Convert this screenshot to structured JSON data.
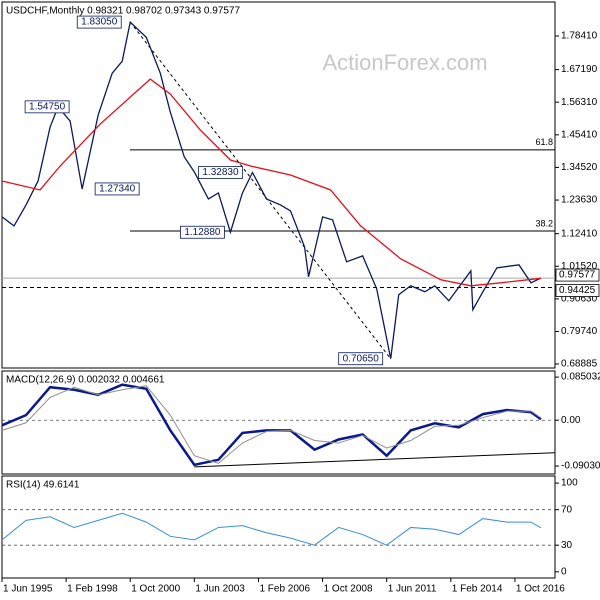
{
  "chart_data": [
    {
      "type": "line",
      "title": "USDCHF,Monthly 0.98321 0.98702 0.97343 0.97577",
      "watermark": "ActionForex.com",
      "xlim": [
        "1995-06",
        "2018-06"
      ],
      "ylim": [
        0.6755,
        1.8976
      ],
      "yticks": [
        {
          "value": 1.7841,
          "label": "1.78410"
        },
        {
          "value": 1.6719,
          "label": "1.67190"
        },
        {
          "value": 1.5631,
          "label": "1.56310"
        },
        {
          "value": 1.4541,
          "label": "1.45410"
        },
        {
          "value": 1.3452,
          "label": "1.34520"
        },
        {
          "value": 1.2363,
          "label": "1.23630"
        },
        {
          "value": 1.1241,
          "label": "1.12410"
        },
        {
          "value": 1.0152,
          "label": "1.01520"
        },
        {
          "value": 0.9063,
          "label": "0.90630"
        },
        {
          "value": 0.7974,
          "label": "0.79740"
        },
        0.68885
      ],
      "series": [
        {
          "color": "#0a1a5c",
          "x": [
            "1995-06",
            "1995-12",
            "1996-06",
            "1996-12",
            "1997-06",
            "1997-10",
            "1998-04",
            "1998-10",
            "1999-06",
            "2000-01",
            "2000-06",
            "2000-10",
            "2001-06",
            "2002-01",
            "2002-06",
            "2003-01",
            "2003-06",
            "2004-01",
            "2004-06",
            "2004-12",
            "2005-06",
            "2005-11",
            "2006-06",
            "2007-01",
            "2007-06",
            "2008-01",
            "2008-03",
            "2008-10",
            "2009-03",
            "2009-10",
            "2010-06",
            "2011-01",
            "2011-08",
            "2011-12",
            "2012-06",
            "2013-01",
            "2013-06",
            "2014-01",
            "2014-12",
            "2015-01",
            "2015-06",
            "2016-01",
            "2016-12",
            "2017-06",
            "2017-11"
          ],
          "values": [
            1.18,
            1.15,
            1.22,
            1.3,
            1.48,
            1.5475,
            1.5,
            1.2734,
            1.52,
            1.66,
            1.7,
            1.8305,
            1.78,
            1.66,
            1.53,
            1.38,
            1.33,
            1.24,
            1.26,
            1.1288,
            1.26,
            1.3283,
            1.24,
            1.22,
            1.2,
            1.08,
            0.98,
            1.18,
            1.17,
            1.03,
            1.05,
            0.94,
            0.7065,
            0.92,
            0.95,
            0.93,
            0.95,
            0.9,
            1.0,
            0.87,
            0.93,
            1.01,
            1.02,
            0.96,
            0.97577
          ]
        },
        {
          "color": "#e0121a",
          "x": [
            "1995-06",
            "1997-01",
            "1997-11",
            "1999-07",
            "2001-08",
            "2002-06",
            "2003-09",
            "2004-12",
            "2005-10",
            "2007-06",
            "2009-02",
            "2010-05",
            "2012-01",
            "2013-09",
            "2014-12",
            "2016-03",
            "2017-11"
          ],
          "values": [
            1.3,
            1.27,
            1.35,
            1.49,
            1.64,
            1.59,
            1.47,
            1.37,
            1.35,
            1.32,
            1.27,
            1.15,
            1.04,
            0.97,
            0.95,
            0.96,
            0.975
          ]
        }
      ],
      "annotations": [
        {
          "value": 1.8305,
          "label": "1.83050",
          "x": "2000-10"
        },
        {
          "value": 1.5475,
          "label": "1.54750",
          "x": "1997-10"
        },
        {
          "value": 1.2734,
          "label": "1.27340",
          "x": "1998-10"
        },
        {
          "value": 1.3283,
          "label": "1.32830",
          "x": "2005-11"
        },
        {
          "value": 1.1288,
          "label": "1.12880",
          "x": "2004-12"
        },
        {
          "value": 0.7065,
          "label": "0.70650",
          "x": "2011-08"
        }
      ],
      "fib_levels": [
        {
          "value": 1.404,
          "label": "61.8"
        },
        {
          "value": 1.133,
          "label": "38.2"
        }
      ],
      "markers": [
        {
          "value": 0.97577,
          "label": "0.97577",
          "style": "solid"
        },
        {
          "value": 0.94425,
          "label": "0.94425",
          "style": "dashed"
        }
      ],
      "trendline": {
        "x": [
          "2000-10",
          "2011-08"
        ],
        "values": [
          1.8305,
          0.7065
        ]
      }
    },
    {
      "type": "line",
      "title": "MACD(12,26,9) 0.002032 0.004661",
      "xlim": [
        "1995-06",
        "2018-06"
      ],
      "ylim": [
        -0.106,
        0.097
      ],
      "yticks": [
        0.085032,
        {
          "value": 0,
          "label": "0.00"
        },
        -0.090302
      ],
      "levels": [
        0
      ],
      "series": [
        {
          "color": "#0a1a8c",
          "width": 2.5,
          "x": [
            "1995-06",
            "1996-06",
            "1997-06",
            "1998-06",
            "1999-06",
            "2000-06",
            "2001-06",
            "2002-06",
            "2003-06",
            "2004-06",
            "2005-06",
            "2006-06",
            "2007-06",
            "2008-06",
            "2009-06",
            "2010-06",
            "2011-06",
            "2012-06",
            "2013-06",
            "2014-06",
            "2015-06",
            "2016-06",
            "2017-06",
            "2017-11"
          ],
          "values": [
            -0.01,
            0.01,
            0.065,
            0.06,
            0.05,
            0.07,
            0.062,
            -0.02,
            -0.088,
            -0.078,
            -0.025,
            -0.02,
            -0.02,
            -0.058,
            -0.038,
            -0.028,
            -0.07,
            -0.02,
            -0.006,
            -0.014,
            0.012,
            0.02,
            0.016,
            0.002032
          ]
        },
        {
          "color": "#909090",
          "width": 1,
          "x": [
            "1995-06",
            "1996-06",
            "1997-06",
            "1998-06",
            "1999-06",
            "2000-06",
            "2001-06",
            "2002-06",
            "2003-06",
            "2004-06",
            "2005-06",
            "2006-06",
            "2007-06",
            "2008-06",
            "2009-06",
            "2010-06",
            "2011-06",
            "2012-06",
            "2013-06",
            "2014-06",
            "2015-06",
            "2016-06",
            "2017-06",
            "2017-11"
          ],
          "values": [
            -0.02,
            -0.005,
            0.045,
            0.065,
            0.05,
            0.06,
            0.068,
            0.01,
            -0.07,
            -0.085,
            -0.045,
            -0.022,
            -0.02,
            -0.04,
            -0.045,
            -0.03,
            -0.055,
            -0.04,
            -0.012,
            -0.01,
            0.005,
            0.018,
            0.018,
            0.004661
          ]
        }
      ],
      "trendline": {
        "x": [
          "2003-06",
          "2018-06"
        ],
        "values": [
          -0.092,
          -0.064
        ]
      }
    },
    {
      "type": "line",
      "title": "RSI(14) 49.6141",
      "xlim": [
        "1995-06",
        "2018-06"
      ],
      "ylim": [
        -7,
        108
      ],
      "yticks": [
        100,
        70,
        30,
        0
      ],
      "levels": [
        70,
        30
      ],
      "xticks": [
        {
          "value": "1995-06",
          "label": "1 Jun 1995"
        },
        {
          "value": "1998-02",
          "label": "1 Feb 1998"
        },
        {
          "value": "2000-10",
          "label": "1 Oct 2000"
        },
        {
          "value": "2003-06",
          "label": "1 Jun 2003"
        },
        {
          "value": "2006-02",
          "label": "1 Feb 2006"
        },
        {
          "value": "2008-10",
          "label": "1 Oct 2008"
        },
        {
          "value": "2011-06",
          "label": "1 Jun 2011"
        },
        {
          "value": "2014-02",
          "label": "1 Feb 2014"
        },
        {
          "value": "2016-10",
          "label": "1 Oct 2016"
        }
      ],
      "series": [
        {
          "color": "#3a8fd8",
          "width": 1,
          "x": [
            "1995-06",
            "1996-06",
            "1997-06",
            "1998-06",
            "1999-06",
            "2000-06",
            "2001-06",
            "2002-06",
            "2003-06",
            "2004-06",
            "2005-06",
            "2006-06",
            "2007-06",
            "2008-06",
            "2009-06",
            "2010-06",
            "2011-06",
            "2012-06",
            "2013-06",
            "2014-06",
            "2015-06",
            "2016-06",
            "2017-06",
            "2017-11"
          ],
          "values": [
            36,
            58,
            62,
            50,
            58,
            66,
            56,
            40,
            36,
            50,
            52,
            44,
            38,
            30,
            50,
            42,
            30,
            50,
            48,
            42,
            60,
            56,
            56,
            49.6141
          ]
        }
      ]
    }
  ]
}
